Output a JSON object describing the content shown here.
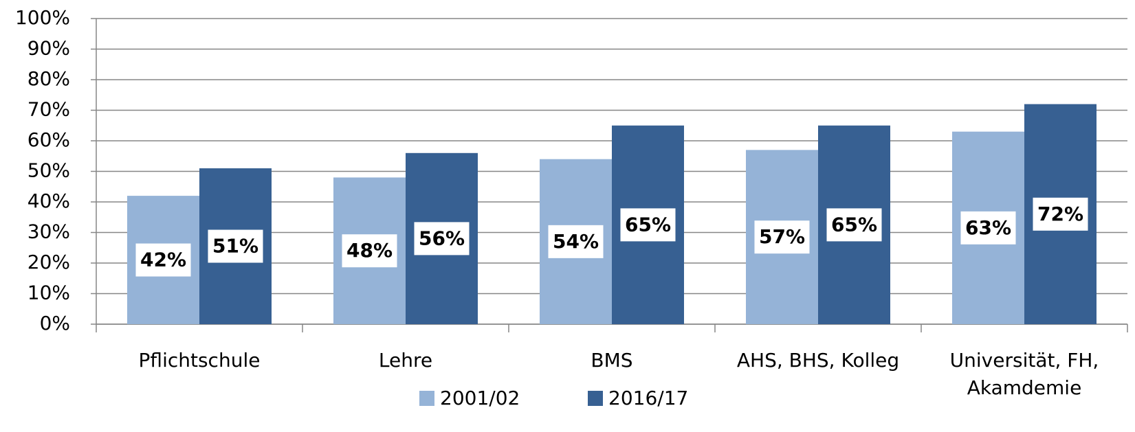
{
  "chart_data": {
    "type": "bar",
    "categories": [
      "Pflichtschule",
      "Lehre",
      "BMS",
      "AHS, BHS, Kolleg",
      "Universität, FH, Akamdemie"
    ],
    "series": [
      {
        "name": "2001/02",
        "color": "#95b3d7",
        "values": [
          42,
          48,
          54,
          57,
          63
        ],
        "value_labels": [
          "42%",
          "48%",
          "54%",
          "57%",
          "63%"
        ]
      },
      {
        "name": "2016/17",
        "color": "#376092",
        "values": [
          51,
          56,
          65,
          65,
          72
        ],
        "value_labels": [
          "51%",
          "56%",
          "65%",
          "65%",
          "72%"
        ]
      }
    ],
    "ylim": [
      0,
      100
    ],
    "yticks": [
      {
        "value": 0,
        "label": "0%"
      },
      {
        "value": 10,
        "label": "10%"
      },
      {
        "value": 20,
        "label": "20%"
      },
      {
        "value": 30,
        "label": "30%"
      },
      {
        "value": 40,
        "label": "40%"
      },
      {
        "value": 50,
        "label": "50%"
      },
      {
        "value": 60,
        "label": "60%"
      },
      {
        "value": 70,
        "label": "70%"
      },
      {
        "value": 80,
        "label": "80%"
      },
      {
        "value": 90,
        "label": "90%"
      },
      {
        "value": 100,
        "label": "100%"
      }
    ],
    "grid": true,
    "legend": "bottom"
  }
}
